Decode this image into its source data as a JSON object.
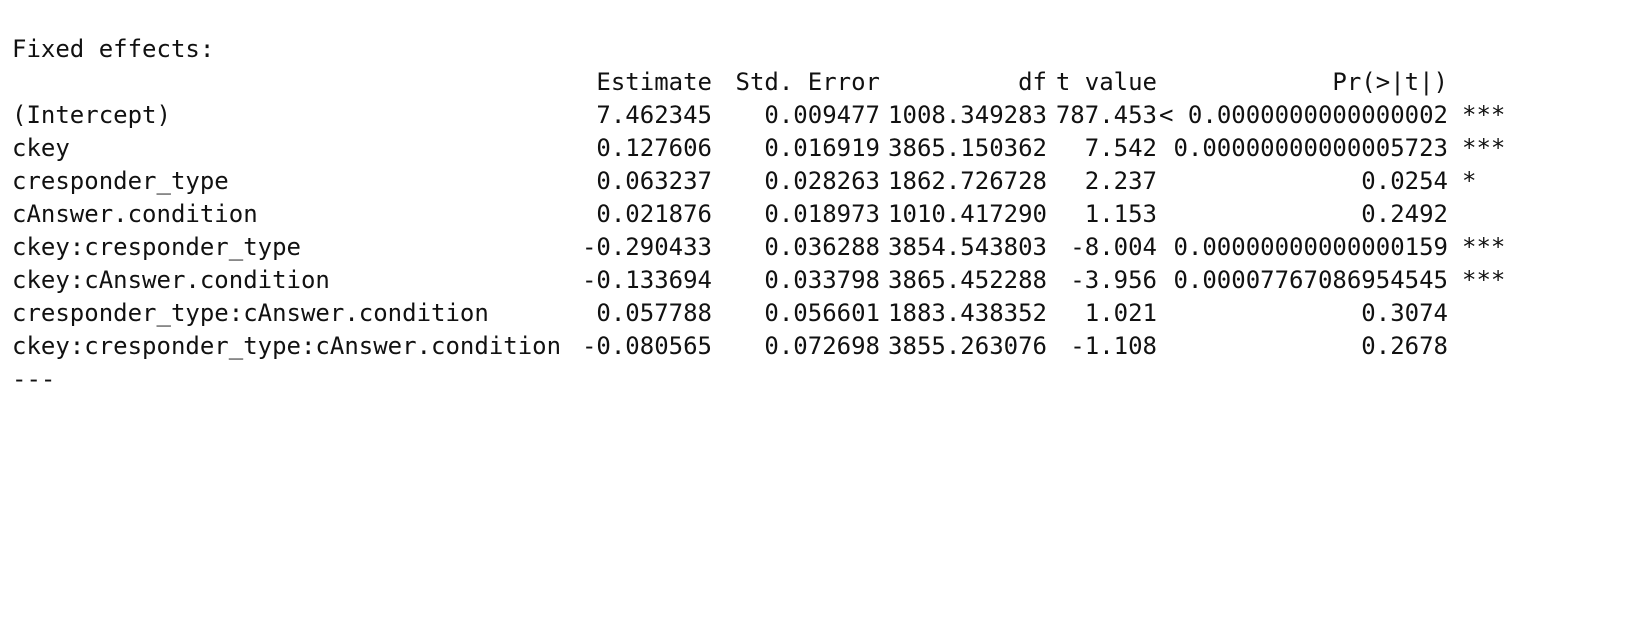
{
  "section_title": "Fixed effects:",
  "headers": {
    "estimate": "Estimate",
    "std_error": "Std. Error",
    "df": "df",
    "t_value": "t value",
    "p_value": "Pr(>|t|)"
  },
  "rows": [
    {
      "term": "(Intercept)",
      "estimate": "7.462345",
      "std_error": "0.009477",
      "df": "1008.349283",
      "t_value": "787.453",
      "p_value": "< 0.0000000000000002",
      "signif": "***"
    },
    {
      "term": "ckey",
      "estimate": "0.127606",
      "std_error": "0.016919",
      "df": "3865.150362",
      "t_value": "7.542",
      "p_value": "0.00000000000005723",
      "signif": "***"
    },
    {
      "term": "cresponder_type",
      "estimate": "0.063237",
      "std_error": "0.028263",
      "df": "1862.726728",
      "t_value": "2.237",
      "p_value": "0.0254",
      "signif": "*"
    },
    {
      "term": "cAnswer.condition",
      "estimate": "0.021876",
      "std_error": "0.018973",
      "df": "1010.417290",
      "t_value": "1.153",
      "p_value": "0.2492",
      "signif": ""
    },
    {
      "term": "ckey:cresponder_type",
      "estimate": "-0.290433",
      "std_error": "0.036288",
      "df": "3854.543803",
      "t_value": "-8.004",
      "p_value": "0.00000000000000159",
      "signif": "***"
    },
    {
      "term": "ckey:cAnswer.condition",
      "estimate": "-0.133694",
      "std_error": "0.033798",
      "df": "3865.452288",
      "t_value": "-3.956",
      "p_value": "0.00007767086954545",
      "signif": "***"
    },
    {
      "term": "cresponder_type:cAnswer.condition",
      "estimate": "0.057788",
      "std_error": "0.056601",
      "df": "1883.438352",
      "t_value": "1.021",
      "p_value": "0.3074",
      "signif": ""
    },
    {
      "term": "ckey:cresponder_type:cAnswer.condition",
      "estimate": "-0.080565",
      "std_error": "0.072698",
      "df": "3855.263076",
      "t_value": "-1.108",
      "p_value": "0.2678",
      "signif": ""
    }
  ],
  "separator": "---"
}
